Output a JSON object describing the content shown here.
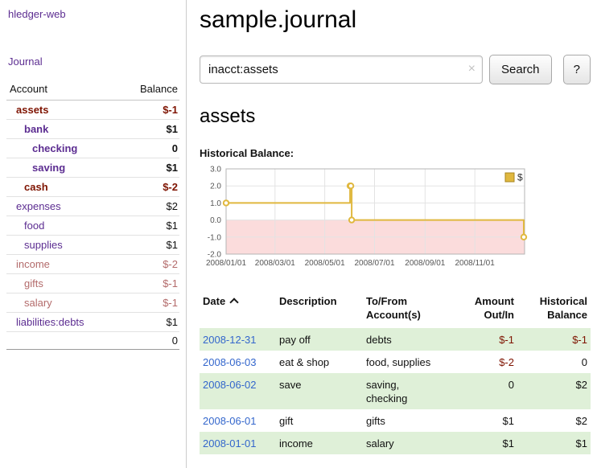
{
  "colors": {
    "purple": "#5c2d91",
    "negative": "#7e1300",
    "rose": "#b36b6b",
    "linkBlue": "#3366cc",
    "rowGreen": "#dff0d8",
    "gold": "#e0b83f",
    "pinkRegion": "#fbdcdc"
  },
  "sidebar": {
    "app_title": "hledger-web",
    "journal_link": "Journal",
    "table": {
      "account_header": "Account",
      "balance_header": "Balance",
      "accounts": [
        {
          "name": "assets",
          "balance": "$-1",
          "depth": 0
        },
        {
          "name": "bank",
          "balance": "$1",
          "depth": 1
        },
        {
          "name": "checking",
          "balance": "0",
          "depth": 2
        },
        {
          "name": "saving",
          "balance": "$1",
          "depth": 2
        },
        {
          "name": "cash",
          "balance": "$-2",
          "depth": 1
        },
        {
          "name": "expenses",
          "balance": "$2",
          "depth": 0
        },
        {
          "name": "food",
          "balance": "$1",
          "depth": 1
        },
        {
          "name": "supplies",
          "balance": "$1",
          "depth": 1
        },
        {
          "name": "income",
          "balance": "$-2",
          "depth": 0
        },
        {
          "name": "gifts",
          "balance": "$-1",
          "depth": 1
        },
        {
          "name": "salary",
          "balance": "$-1",
          "depth": 1
        },
        {
          "name": "liabilities:debts",
          "balance": "$1",
          "depth": 0
        }
      ],
      "total": "0"
    }
  },
  "main": {
    "title": "sample.journal",
    "search": {
      "value": "inacct:assets",
      "clear_icon": "×",
      "button_label": "Search",
      "help_label": "?"
    },
    "account_heading": "assets",
    "register": {
      "headers": [
        "Date",
        "Description",
        "To/From Account(s)",
        "Amount Out/In",
        "Historical Balance"
      ],
      "rows": [
        {
          "date": "2008-12-31",
          "description": "pay off",
          "accounts": "debts",
          "amount": "$-1",
          "balance": "$-1"
        },
        {
          "date": "2008-06-03",
          "description": "eat & shop",
          "accounts": "food, supplies",
          "amount": "$-2",
          "balance": "0"
        },
        {
          "date": "2008-06-02",
          "description": "save",
          "accounts": "saving, checking",
          "amount": "0",
          "balance": "$2"
        },
        {
          "date": "2008-06-01",
          "description": "gift",
          "accounts": "gifts",
          "amount": "$1",
          "balance": "$2"
        },
        {
          "date": "2008-01-01",
          "description": "income",
          "accounts": "salary",
          "amount": "$1",
          "balance": "$1"
        }
      ]
    }
  },
  "chart_data": {
    "type": "line",
    "title": "Historical Balance:",
    "step": true,
    "xlabel": "",
    "ylabel": "",
    "xlim": [
      "2008-01-01",
      "2009-01-01"
    ],
    "ylim": [
      -2,
      3
    ],
    "yticks": [
      "3.0",
      "2.0",
      "1.0",
      "0.0",
      "-1.0",
      "-2.0"
    ],
    "xticks": [
      "2008/01/01",
      "2008/03/01",
      "2008/05/01",
      "2008/07/01",
      "2008/09/01",
      "2008/11/01"
    ],
    "grid": true,
    "legend_position": "top-right",
    "negative_region_below_y": 0,
    "series": [
      {
        "name": "$",
        "points": [
          {
            "x": "2008-01-01",
            "y": 1
          },
          {
            "x": "2008-06-01",
            "y": 2
          },
          {
            "x": "2008-06-02",
            "y": 2
          },
          {
            "x": "2008-06-03",
            "y": 0
          },
          {
            "x": "2008-12-31",
            "y": -1
          }
        ]
      }
    ]
  }
}
